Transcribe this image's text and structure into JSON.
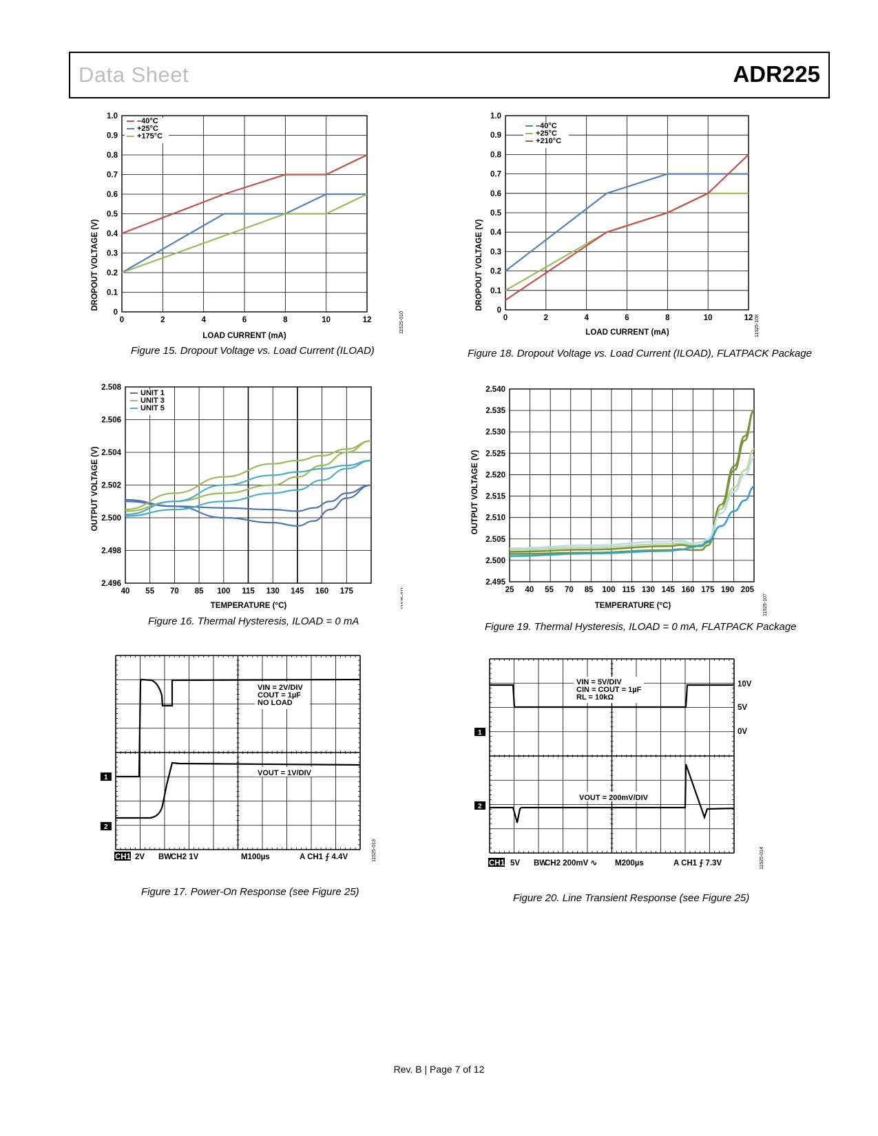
{
  "header": {
    "left": "Data Sheet",
    "right": "ADR225"
  },
  "footer": "Rev. B | Page 7 of 12",
  "figures": {
    "fig15": {
      "caption": "Figure 15. Dropout Voltage vs. Load Current (ILOAD)",
      "id": "11525-010",
      "chart_data": {
        "type": "line",
        "xlabel": "LOAD CURRENT (mA)",
        "ylabel": "DROPOUT VOLTAGE (V)",
        "xlim": [
          0,
          12
        ],
        "ylim": [
          0,
          1.0
        ],
        "xticks": [
          "0",
          "2",
          "4",
          "6",
          "8",
          "10",
          "12"
        ],
        "yticks": [
          "0",
          "0.1",
          "0.2",
          "0.3",
          "0.4",
          "0.5",
          "0.6",
          "0.7",
          "0.8",
          "0.9",
          "1.0"
        ],
        "series": [
          {
            "name": "–40°C",
            "color": "#c0504d",
            "x": [
              0,
              5,
              8,
              10,
              12
            ],
            "y": [
              0.4,
              0.6,
              0.7,
              0.7,
              0.8
            ]
          },
          {
            "name": "+25°C",
            "color": "#4f81bd",
            "x": [
              0,
              5,
              8,
              10,
              12
            ],
            "y": [
              0.2,
              0.5,
              0.5,
              0.6,
              0.6
            ]
          },
          {
            "name": "+175°C",
            "color": "#9bbb59",
            "x": [
              0,
              8,
              10,
              12
            ],
            "y": [
              0.2,
              0.5,
              0.5,
              0.6
            ]
          }
        ]
      }
    },
    "fig18": {
      "caption": "Figure 18. Dropout Voltage vs. Load Current (ILOAD), FLATPACK Package",
      "id": "11525-108",
      "chart_data": {
        "type": "line",
        "xlabel": "LOAD CURRENT (mA)",
        "ylabel": "DROPOUT VOLTAGE (V)",
        "xlim": [
          0,
          12
        ],
        "ylim": [
          0,
          1.0
        ],
        "xticks": [
          "0",
          "2",
          "4",
          "6",
          "8",
          "10",
          "12"
        ],
        "yticks": [
          "0",
          "0.1",
          "0.2",
          "0.3",
          "0.4",
          "0.5",
          "0.6",
          "0.7",
          "0.8",
          "0.9",
          "1.0"
        ],
        "series": [
          {
            "name": "–40°C",
            "color": "#4f81bd",
            "x": [
              0,
              5,
              8,
              12
            ],
            "y": [
              0.2,
              0.6,
              0.7,
              0.7
            ]
          },
          {
            "name": "+25°C",
            "color": "#9bbb59",
            "x": [
              0,
              5,
              8,
              10,
              12
            ],
            "y": [
              0.1,
              0.4,
              0.5,
              0.6,
              0.6
            ]
          },
          {
            "name": "+210°C",
            "color": "#c0504d",
            "x": [
              0,
              5,
              8,
              10,
              12
            ],
            "y": [
              0.05,
              0.4,
              0.5,
              0.6,
              0.8
            ]
          }
        ]
      }
    },
    "fig16": {
      "caption": "Figure 16. Thermal Hysteresis, ILOAD = 0 mA",
      "id": "11525-011",
      "chart_data": {
        "type": "line",
        "xlabel": "TEMPERATURE (°C)",
        "ylabel": "OUTPUT VOLTAGE (V)",
        "xlim": [
          40,
          190
        ],
        "ylim": [
          2.496,
          2.508
        ],
        "xticks": [
          "40",
          "55",
          "70",
          "85",
          "100",
          "115",
          "130",
          "145",
          "160",
          "175"
        ],
        "yticks": [
          "2.496",
          "2.498",
          "2.500",
          "2.502",
          "2.504",
          "2.506",
          "2.508"
        ],
        "series": [
          {
            "name": "UNIT 1",
            "color": "#4f73b3",
            "x": [
              40,
              70,
              100,
              130,
              145,
              155,
              165,
              175,
              190
            ],
            "y": [
              2.5011,
              2.5007,
              2.5006,
              2.5005,
              2.5004,
              2.5006,
              2.501,
              2.5015,
              2.502
            ]
          },
          {
            "name": "UNIT 1 (return)",
            "color": "#4f73b3",
            "x": [
              40,
              70,
              100,
              130,
              145,
              155,
              165,
              175,
              190
            ],
            "y": [
              2.501,
              2.5007,
              2.5,
              2.4997,
              2.4995,
              2.4998,
              2.5005,
              2.5012,
              2.502
            ]
          },
          {
            "name": "UNIT 3",
            "color": "#9bbb59",
            "x": [
              40,
              70,
              100,
              130,
              145,
              160,
              175,
              190
            ],
            "y": [
              2.5005,
              2.5015,
              2.5025,
              2.5033,
              2.5035,
              2.5038,
              2.5042,
              2.5047
            ]
          },
          {
            "name": "UNIT 3 (return)",
            "color": "#9bbb59",
            "x": [
              40,
              70,
              100,
              130,
              145,
              160,
              175,
              190
            ],
            "y": [
              2.5004,
              2.501,
              2.5015,
              2.502,
              2.5025,
              2.5032,
              2.504,
              2.5047
            ]
          },
          {
            "name": "UNIT 5",
            "color": "#4bacc6",
            "x": [
              40,
              70,
              100,
              130,
              145,
              160,
              175,
              190
            ],
            "y": [
              2.5002,
              2.501,
              2.502,
              2.5026,
              2.5028,
              2.503,
              2.5032,
              2.5035
            ]
          },
          {
            "name": "UNIT 5 (return)",
            "color": "#4bacc6",
            "x": [
              40,
              70,
              100,
              130,
              145,
              160,
              175,
              190
            ],
            "y": [
              2.5001,
              2.5005,
              2.501,
              2.5015,
              2.5017,
              2.5023,
              2.503,
              2.5035
            ]
          }
        ]
      }
    },
    "fig19": {
      "caption": "Figure 19. Thermal Hysteresis, ILOAD = 0 mA, FLATPACK Package",
      "id": "11525-107",
      "chart_data": {
        "type": "line",
        "xlabel": "TEMPERATURE (°C)",
        "ylabel": "OUTPUT VOLTAGE (V)",
        "xlim": [
          25,
          210
        ],
        "ylim": [
          2.495,
          2.54
        ],
        "xticks": [
          "25",
          "40",
          "55",
          "70",
          "85",
          "100",
          "115",
          "130",
          "145",
          "160",
          "175",
          "190",
          "205"
        ],
        "yticks": [
          "2.495",
          "2.500",
          "2.505",
          "2.510",
          "2.515",
          "2.520",
          "2.525",
          "2.530",
          "2.535",
          "2.540"
        ],
        "series": [
          {
            "name": "dark green",
            "color": "#77933c",
            "x": [
              25,
              85,
              145,
              155,
              162,
              170,
              175,
              185,
              195,
              203,
              210
            ],
            "y": [
              2.5015,
              2.5018,
              2.5024,
              2.5026,
              2.5024,
              2.5024,
              2.5035,
              2.512,
              2.521,
              2.528,
              2.535
            ]
          },
          {
            "name": "light green",
            "color": "#c4d79b",
            "x": [
              25,
              85,
              145,
              155,
              162,
              170,
              175,
              185,
              195,
              203,
              210
            ],
            "y": [
              2.5025,
              2.503,
              2.5038,
              2.504,
              2.5036,
              2.5036,
              2.5045,
              2.512,
              2.517,
              2.521,
              2.526
            ]
          },
          {
            "name": "dark green 2",
            "color": "#77933c",
            "x": [
              25,
              85,
              145,
              155,
              162,
              170,
              175,
              185,
              195,
              203,
              210
            ],
            "y": [
              2.502,
              2.5025,
              2.5033,
              2.5036,
              2.5033,
              2.5033,
              2.5042,
              2.513,
              2.522,
              2.529,
              2.535
            ]
          },
          {
            "name": "blue",
            "color": "#31a3c4",
            "x": [
              25,
              85,
              145,
              155,
              162,
              170,
              175,
              185,
              195,
              203,
              210
            ],
            "y": [
              2.501,
              2.5016,
              2.5022,
              2.5025,
              2.503,
              2.5035,
              2.5045,
              2.508,
              2.5115,
              2.514,
              2.5172
            ]
          },
          {
            "name": "pale blue",
            "color": "#b7dee8",
            "x": [
              25,
              85,
              145,
              155,
              162,
              170,
              175,
              185,
              195,
              203,
              210
            ],
            "y": [
              2.5028,
              2.5035,
              2.5044,
              2.5046,
              2.504,
              2.5042,
              2.505,
              2.511,
              2.516,
              2.52,
              2.524
            ]
          }
        ]
      }
    },
    "fig17": {
      "caption": "Figure 17. Power-On Response (see Figure 25)",
      "id": "11525-013",
      "ann1_l1": "VIN = 2V/DIV",
      "ann1_l2": "COUT = 1µF",
      "ann1_l3": "NO LOAD",
      "ann2": "VOUT = 1V/DIV",
      "ch1_marker": "1",
      "ch2_marker": "2",
      "bottom": {
        "ch": "CH1",
        "ch1": "2V",
        "bw": "BW",
        "ch2": "CH2 1V",
        "time": "M100µs",
        "trig": "A  CH1  ⨍  4.4V"
      }
    },
    "fig20": {
      "caption": "Figure 20. Line Transient Response (see Figure 25)",
      "id": "11525-014",
      "ann1_l1": "VIN = 5V/DIV",
      "ann1_l2": "CIN = COUT = 1µF",
      "ann1_l3": "RL = 10kΩ",
      "ann2": "VOUT = 200mV/DIV",
      "r1": "10V",
      "r2": "5V",
      "r3": "0V",
      "ch1_marker": "1",
      "ch2_marker": "2",
      "bottom": {
        "ch": "CH1",
        "ch1": "5V",
        "bw": "BW",
        "ch2": "CH2 200mV  ∿",
        "time": "M200µs",
        "trig": "A  CH1  ⨍  7.3V"
      }
    }
  }
}
